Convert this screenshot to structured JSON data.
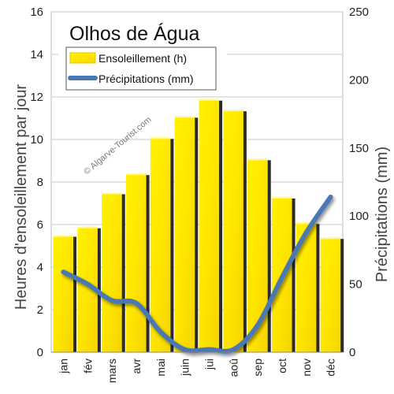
{
  "chart_data": {
    "type": "bar",
    "title": "Olhos de Água",
    "categories": [
      "jan",
      "fév",
      "mars",
      "avr",
      "mai",
      "juin",
      "jui",
      "aoû",
      "sep",
      "oct",
      "nov",
      "déc"
    ],
    "series": [
      {
        "name": "Ensoleillement (h)",
        "type": "bar",
        "axis": "left",
        "color": "#ffee00",
        "values": [
          5.5,
          5.9,
          7.5,
          8.4,
          10.1,
          11.1,
          11.9,
          11.4,
          9.1,
          7.3,
          6.1,
          5.4
        ]
      },
      {
        "name": "Précipitations (mm)",
        "type": "line",
        "axis": "right",
        "color": "#4a78b5",
        "values": [
          59,
          50,
          38,
          36,
          15,
          2,
          2,
          2,
          20,
          55,
          88,
          114
        ]
      }
    ],
    "ylabel_left": "Heures d'ensoleillement par jour",
    "ylabel_right": "Précipitations (mm)",
    "ylim_left": [
      0,
      16
    ],
    "yticks_left": [
      "0",
      "2",
      "4",
      "6",
      "8",
      "10",
      "12",
      "14",
      "16"
    ],
    "ylim_right": [
      0,
      250
    ],
    "yticks_right": [
      "0",
      "50",
      "100",
      "150",
      "200",
      "250"
    ],
    "grid": true,
    "legend_position": "top-left",
    "watermark": "© Algarve-Tourist.com"
  }
}
